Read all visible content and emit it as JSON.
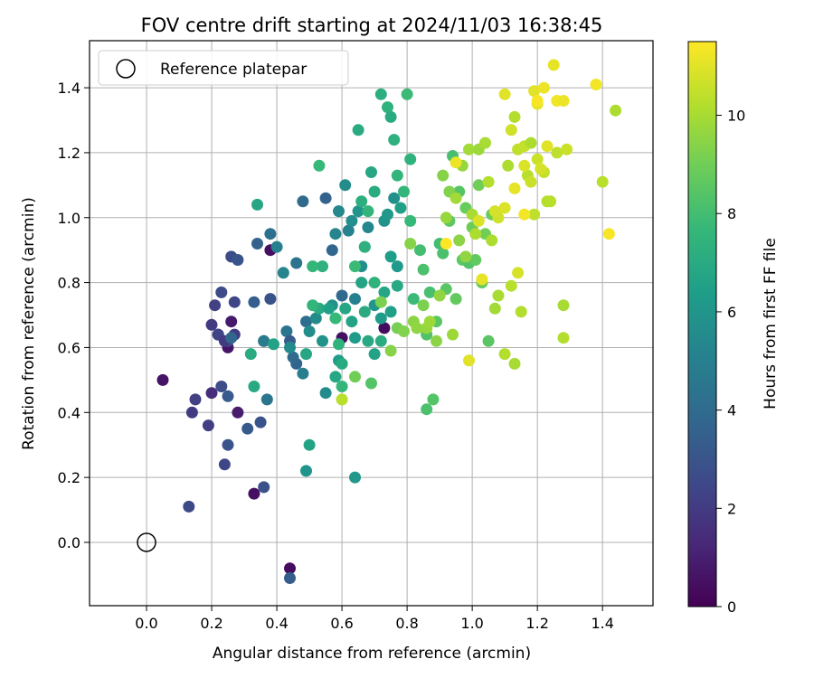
{
  "chart_data": {
    "type": "scatter",
    "title": "FOV centre drift starting at 2024/11/03 16:38:45",
    "xlabel": "Angular distance from reference (arcmin)",
    "ylabel": "Rotation from reference (arcmin)",
    "xlim": [
      -0.175,
      1.555
    ],
    "ylim": [
      -0.195,
      1.545
    ],
    "xticks": [
      "0.0",
      "0.2",
      "0.4",
      "0.6",
      "0.8",
      "1.0",
      "1.2",
      "1.4"
    ],
    "yticks": [
      "0.0",
      "0.2",
      "0.4",
      "0.6",
      "0.8",
      "1.0",
      "1.2",
      "1.4"
    ],
    "grid": true,
    "legend": {
      "position": "top-left",
      "label": "Reference platepar"
    },
    "reference_point": {
      "x": 0.0,
      "y": 0.0
    },
    "colorbar": {
      "label": "Hours from first FF file",
      "colormap": "viridis",
      "range": [
        0,
        11.5
      ],
      "ticks": [
        "0",
        "2",
        "4",
        "6",
        "8",
        "10"
      ]
    },
    "points": [
      [
        0.05,
        0.5,
        0.6
      ],
      [
        0.33,
        0.15,
        0.5
      ],
      [
        0.44,
        -0.08,
        0.4
      ],
      [
        0.38,
        0.9,
        0.5
      ],
      [
        0.26,
        0.68,
        0.8
      ],
      [
        0.28,
        0.4,
        0.9
      ],
      [
        0.36,
        0.62,
        0.7
      ],
      [
        0.25,
        0.6,
        0.6
      ],
      [
        0.6,
        0.63,
        0.5
      ],
      [
        0.73,
        0.66,
        0.4
      ],
      [
        0.13,
        0.11,
        2.5
      ],
      [
        0.14,
        0.4,
        2.0
      ],
      [
        0.15,
        0.44,
        2.2
      ],
      [
        0.19,
        0.36,
        2.1
      ],
      [
        0.2,
        0.46,
        1.5
      ],
      [
        0.2,
        0.67,
        2.0
      ],
      [
        0.21,
        0.73,
        2.2
      ],
      [
        0.22,
        0.64,
        2.3
      ],
      [
        0.23,
        0.77,
        2.6
      ],
      [
        0.23,
        0.48,
        2.7
      ],
      [
        0.24,
        0.24,
        2.4
      ],
      [
        0.25,
        0.3,
        3.0
      ],
      [
        0.25,
        0.62,
        2.5
      ],
      [
        0.26,
        0.88,
        2.6
      ],
      [
        0.27,
        0.64,
        2.0
      ],
      [
        0.27,
        0.74,
        2.4
      ],
      [
        0.28,
        0.87,
        3.0
      ],
      [
        0.31,
        0.35,
        3.2
      ],
      [
        0.33,
        0.74,
        3.4
      ],
      [
        0.35,
        0.37,
        3.0
      ],
      [
        0.36,
        0.17,
        2.8
      ],
      [
        0.38,
        0.75,
        2.9
      ],
      [
        0.44,
        -0.11,
        3.4
      ],
      [
        0.22,
        0.64,
        2.3
      ],
      [
        0.24,
        0.62,
        2.0
      ],
      [
        0.25,
        0.45,
        3.3
      ],
      [
        0.46,
        0.55,
        3.7
      ],
      [
        0.45,
        0.57,
        4.0
      ],
      [
        0.43,
        0.65,
        4.5
      ],
      [
        0.46,
        0.86,
        4.4
      ],
      [
        0.48,
        1.05,
        4.0
      ],
      [
        0.38,
        0.95,
        4.3
      ],
      [
        0.34,
        0.92,
        3.6
      ],
      [
        0.44,
        0.62,
        3.3
      ],
      [
        0.37,
        0.44,
        4.5
      ],
      [
        0.36,
        0.62,
        4.8
      ],
      [
        0.26,
        0.63,
        3.8
      ],
      [
        0.55,
        1.06,
        3.6
      ],
      [
        0.57,
        0.9,
        3.8
      ],
      [
        0.6,
        0.76,
        3.9
      ],
      [
        0.49,
        0.68,
        4.1
      ],
      [
        0.48,
        0.52,
        4.9
      ],
      [
        0.4,
        0.91,
        5.0
      ],
      [
        0.42,
        0.83,
        5.2
      ],
      [
        0.44,
        0.6,
        5.5
      ],
      [
        0.5,
        0.65,
        5.6
      ],
      [
        0.52,
        0.69,
        5.5
      ],
      [
        0.54,
        0.62,
        5.9
      ],
      [
        0.55,
        0.46,
        5.5
      ],
      [
        0.57,
        0.73,
        5.8
      ],
      [
        0.58,
        0.95,
        5.2
      ],
      [
        0.59,
        1.02,
        5.4
      ],
      [
        0.61,
        1.1,
        5.6
      ],
      [
        0.62,
        0.96,
        5.1
      ],
      [
        0.63,
        0.99,
        5.7
      ],
      [
        0.64,
        0.75,
        5.0
      ],
      [
        0.65,
        1.02,
        6.0
      ],
      [
        0.66,
        0.85,
        5.7
      ],
      [
        0.67,
        0.91,
        6.2
      ],
      [
        0.68,
        0.97,
        5.3
      ],
      [
        0.7,
        0.73,
        6.0
      ],
      [
        0.72,
        0.69,
        6.3
      ],
      [
        0.73,
        0.99,
        5.9
      ],
      [
        0.74,
        1.01,
        6.1
      ],
      [
        0.75,
        0.88,
        6.4
      ],
      [
        0.76,
        1.06,
        5.8
      ],
      [
        0.77,
        0.85,
        6.2
      ],
      [
        0.78,
        1.03,
        6.5
      ],
      [
        0.49,
        0.22,
        6.0
      ],
      [
        0.64,
        0.2,
        6.1
      ],
      [
        0.5,
        0.3,
        6.7
      ],
      [
        0.34,
        1.04,
        6.8
      ],
      [
        0.33,
        0.48,
        6.9
      ],
      [
        0.32,
        0.58,
        7.0
      ],
      [
        0.39,
        0.61,
        6.6
      ],
      [
        0.49,
        0.58,
        6.8
      ],
      [
        0.53,
        0.72,
        7.0
      ],
      [
        0.56,
        0.72,
        6.5
      ],
      [
        0.59,
        0.56,
        6.4
      ],
      [
        0.61,
        0.72,
        6.8
      ],
      [
        0.63,
        0.68,
        6.6
      ],
      [
        0.64,
        0.63,
        6.3
      ],
      [
        0.66,
        0.8,
        6.7
      ],
      [
        0.67,
        0.71,
        7.0
      ],
      [
        0.68,
        0.62,
        6.9
      ],
      [
        0.7,
        0.58,
        6.6
      ],
      [
        0.72,
        0.62,
        7.1
      ],
      [
        0.73,
        0.77,
        6.8
      ],
      [
        0.75,
        0.71,
        6.5
      ],
      [
        0.77,
        0.79,
        6.9
      ],
      [
        0.58,
        0.51,
        6.8
      ],
      [
        0.6,
        0.55,
        7.0
      ],
      [
        0.65,
        1.27,
        7.0
      ],
      [
        0.66,
        1.05,
        7.2
      ],
      [
        0.69,
        1.14,
        6.8
      ],
      [
        0.7,
        1.08,
        7.1
      ],
      [
        0.72,
        1.38,
        7.2
      ],
      [
        0.74,
        1.34,
        7.4
      ],
      [
        0.75,
        1.31,
        7.0
      ],
      [
        0.76,
        1.24,
        7.3
      ],
      [
        0.77,
        1.13,
        7.5
      ],
      [
        0.79,
        1.08,
        7.6
      ],
      [
        0.8,
        1.38,
        7.8
      ],
      [
        0.81,
        1.18,
        7.4
      ],
      [
        0.53,
        1.16,
        7.7
      ],
      [
        0.54,
        0.85,
        7.3
      ],
      [
        0.51,
        0.85,
        7.6
      ],
      [
        0.51,
        0.73,
        7.5
      ],
      [
        0.58,
        0.69,
        7.7
      ],
      [
        0.59,
        0.61,
        7.4
      ],
      [
        0.6,
        0.48,
        7.6
      ],
      [
        0.64,
        0.85,
        7.8
      ],
      [
        0.67,
        0.91,
        7.3
      ],
      [
        0.68,
        1.02,
        7.5
      ],
      [
        0.7,
        0.8,
        7.4
      ],
      [
        0.81,
        0.99,
        7.7
      ],
      [
        0.82,
        0.75,
        7.8
      ],
      [
        0.84,
        0.9,
        8.0
      ],
      [
        0.85,
        0.84,
        8.2
      ],
      [
        0.86,
        0.64,
        8.3
      ],
      [
        0.87,
        0.77,
        8.1
      ],
      [
        0.88,
        0.44,
        8.4
      ],
      [
        0.89,
        0.68,
        8.5
      ],
      [
        0.9,
        0.92,
        8.0
      ],
      [
        0.91,
        0.89,
        8.2
      ],
      [
        0.92,
        0.78,
        8.5
      ],
      [
        0.93,
        0.99,
        8.6
      ],
      [
        0.94,
        1.19,
        8.1
      ],
      [
        0.95,
        0.75,
        8.7
      ],
      [
        0.96,
        1.08,
        8.4
      ],
      [
        0.97,
        0.87,
        8.6
      ],
      [
        0.98,
        1.03,
        8.8
      ],
      [
        0.99,
        0.86,
        8.3
      ],
      [
        1.0,
        0.97,
        8.9
      ],
      [
        1.01,
        0.87,
        8.7
      ],
      [
        1.02,
        1.1,
        9.0
      ],
      [
        1.03,
        0.8,
        8.8
      ],
      [
        1.04,
        0.95,
        9.0
      ],
      [
        1.05,
        0.62,
        8.5
      ],
      [
        1.06,
        1.01,
        8.9
      ],
      [
        0.86,
        0.41,
        8.2
      ],
      [
        0.64,
        0.51,
        9.0
      ],
      [
        0.69,
        0.49,
        8.4
      ],
      [
        0.72,
        0.74,
        9.2
      ],
      [
        0.75,
        0.59,
        9.4
      ],
      [
        0.77,
        0.66,
        9.1
      ],
      [
        0.79,
        0.65,
        9.3
      ],
      [
        0.81,
        0.92,
        9.4
      ],
      [
        0.82,
        0.68,
        9.5
      ],
      [
        0.83,
        0.66,
        9.6
      ],
      [
        0.85,
        0.73,
        9.2
      ],
      [
        0.86,
        0.66,
        9.7
      ],
      [
        0.87,
        0.68,
        9.8
      ],
      [
        0.89,
        0.62,
        9.5
      ],
      [
        0.9,
        0.76,
        9.6
      ],
      [
        0.91,
        1.13,
        9.4
      ],
      [
        0.92,
        1.0,
        9.7
      ],
      [
        0.93,
        1.08,
        9.3
      ],
      [
        0.94,
        0.64,
        9.8
      ],
      [
        0.95,
        1.06,
        9.9
      ],
      [
        0.96,
        0.93,
        9.5
      ],
      [
        0.97,
        1.16,
        9.7
      ],
      [
        0.98,
        0.88,
        9.6
      ],
      [
        0.99,
        1.21,
        9.9
      ],
      [
        1.0,
        1.01,
        10.0
      ],
      [
        1.01,
        0.95,
        10.1
      ],
      [
        1.02,
        1.21,
        9.8
      ],
      [
        1.04,
        1.23,
        10.0
      ],
      [
        1.05,
        1.11,
        10.2
      ],
      [
        1.06,
        0.93,
        10.1
      ],
      [
        1.07,
        0.72,
        9.9
      ],
      [
        1.08,
        0.76,
        10.0
      ],
      [
        1.1,
        0.58,
        10.2
      ],
      [
        1.11,
        1.16,
        10.1
      ],
      [
        1.12,
        0.79,
        10.3
      ],
      [
        1.13,
        0.55,
        10.0
      ],
      [
        1.14,
        1.21,
        10.4
      ],
      [
        1.15,
        0.71,
        10.2
      ],
      [
        1.16,
        1.22,
        10.5
      ],
      [
        1.17,
        1.13,
        10.3
      ],
      [
        1.18,
        1.23,
        10.1
      ],
      [
        1.19,
        1.01,
        10.4
      ],
      [
        1.2,
        1.18,
        10.6
      ],
      [
        1.22,
        1.14,
        10.5
      ],
      [
        1.23,
        1.05,
        10.2
      ],
      [
        1.24,
        1.05,
        10.3
      ],
      [
        1.26,
        1.2,
        10.4
      ],
      [
        1.28,
        0.73,
        10.0
      ],
      [
        1.28,
        0.63,
        10.2
      ],
      [
        1.29,
        1.21,
        10.6
      ],
      [
        1.4,
        1.11,
        10.3
      ],
      [
        1.44,
        1.33,
        10.1
      ],
      [
        0.6,
        0.44,
        10.3
      ],
      [
        1.13,
        1.31,
        10.2
      ],
      [
        1.14,
        0.83,
        10.8
      ],
      [
        1.1,
        1.03,
        10.9
      ],
      [
        1.12,
        1.27,
        10.7
      ],
      [
        1.16,
        1.16,
        10.9
      ],
      [
        1.19,
        1.39,
        11.0
      ],
      [
        1.2,
        1.35,
        11.1
      ],
      [
        1.21,
        1.15,
        10.8
      ],
      [
        1.22,
        1.4,
        11.2
      ],
      [
        1.23,
        1.22,
        11.0
      ],
      [
        1.25,
        1.47,
        11.1
      ],
      [
        1.26,
        1.36,
        11.3
      ],
      [
        1.28,
        1.36,
        11.2
      ],
      [
        1.38,
        1.41,
        11.3
      ],
      [
        1.42,
        0.95,
        11.4
      ],
      [
        0.99,
        0.56,
        11.0
      ],
      [
        1.03,
        0.81,
        11.1
      ],
      [
        1.08,
        1.0,
        10.7
      ],
      [
        1.1,
        1.38,
        11.0
      ],
      [
        1.16,
        1.01,
        11.3
      ],
      [
        1.2,
        1.36,
        11.4
      ],
      [
        0.92,
        0.92,
        11.5
      ],
      [
        0.95,
        1.17,
        11.2
      ],
      [
        1.02,
        0.99,
        10.9
      ],
      [
        1.07,
        1.02,
        10.8
      ],
      [
        1.13,
        1.09,
        11.1
      ],
      [
        1.18,
        1.11,
        10.6
      ]
    ]
  }
}
